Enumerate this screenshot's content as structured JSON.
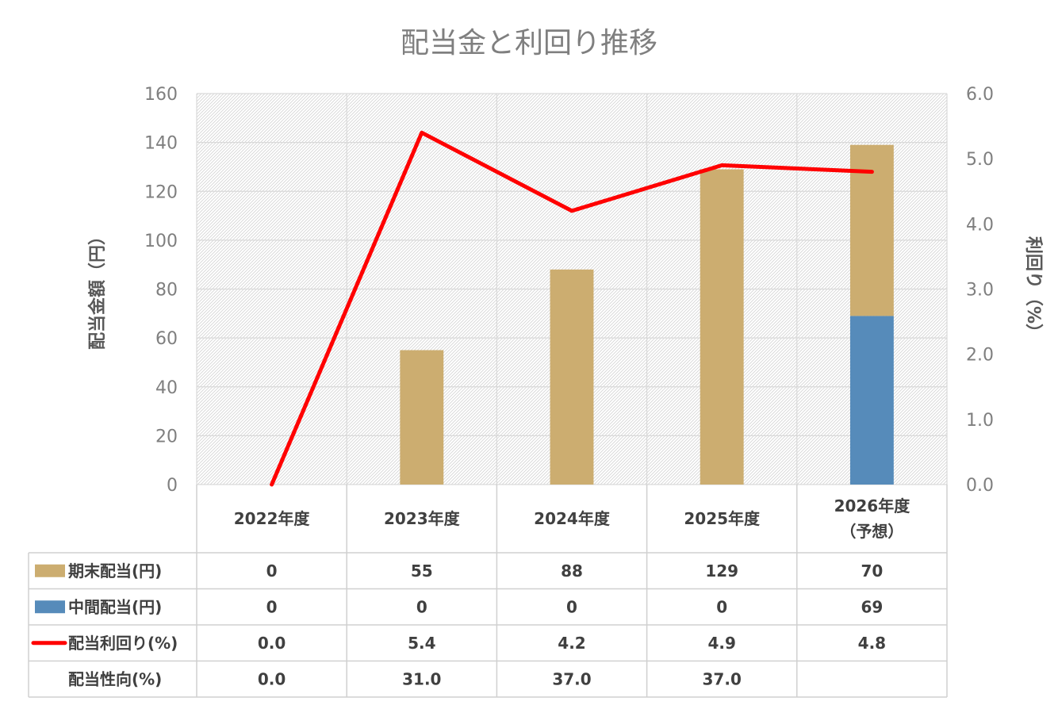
{
  "chart_data": {
    "type": "bar",
    "title": "配当金と利回り推移",
    "categories": [
      [
        "2022年度"
      ],
      [
        "2023年度"
      ],
      [
        "2024年度"
      ],
      [
        "2025年度"
      ],
      [
        "2026年度",
        "（予想）"
      ]
    ],
    "ylabel": "配当金額（円）",
    "y2label": "利回り（%）",
    "ylim": [
      0,
      160
    ],
    "yticks": [
      "0",
      "20",
      "40",
      "60",
      "80",
      "100",
      "120",
      "140",
      "160"
    ],
    "y2lim": [
      0,
      6.0
    ],
    "y2ticks": [
      "0.0",
      "1.0",
      "2.0",
      "3.0",
      "4.0",
      "5.0",
      "6.0"
    ],
    "grid": true,
    "stacked": true,
    "series": [
      {
        "name": "中間配当(円)",
        "type": "bar",
        "axis": "left",
        "values": [
          0,
          0,
          0,
          0,
          69
        ],
        "display": [
          "0",
          "0",
          "0",
          "0",
          "69"
        ]
      },
      {
        "name": "期末配当(円)",
        "type": "bar",
        "axis": "left",
        "values": [
          0,
          55,
          88,
          129,
          70
        ],
        "display": [
          "0",
          "55",
          "88",
          "129",
          "70"
        ]
      },
      {
        "name": "配当利回り(%)",
        "type": "line",
        "axis": "right",
        "values": [
          0.0,
          5.4,
          4.2,
          4.9,
          4.8
        ],
        "display": [
          "0.0",
          "5.4",
          "4.2",
          "4.9",
          "4.8"
        ]
      }
    ],
    "extra_rows": [
      {
        "name": "配当性向(%)",
        "display": [
          "0.0",
          "31.0",
          "37.0",
          "37.0",
          ""
        ]
      }
    ],
    "table_row_order": [
      "期末配当(円)",
      "中間配当(円)",
      "配当利回り(%)",
      "配当性向(%)"
    ],
    "colors": {
      "final_dividend": "#ccad70",
      "interim_dividend": "#568bba",
      "yield_line": "#ff0000"
    }
  }
}
